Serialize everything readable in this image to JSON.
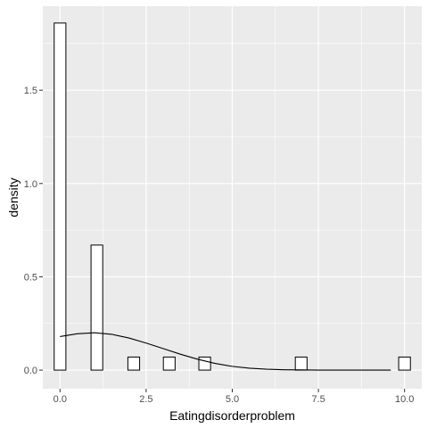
{
  "chart_data": {
    "type": "histogram",
    "title": "",
    "xlabel": "Eatingdisorderproblem",
    "ylabel": "density",
    "xlim": [
      -0.5,
      10.5
    ],
    "ylim": [
      -0.1,
      1.95
    ],
    "x_ticks": [
      0.0,
      2.5,
      5.0,
      7.5,
      10.0
    ],
    "x_tick_labels": [
      "0.0",
      "2.5",
      "5.0",
      "7.5",
      "10.0"
    ],
    "y_ticks": [
      0.0,
      0.5,
      1.0,
      1.5
    ],
    "y_tick_labels": [
      "0.0",
      "0.5",
      "1.0",
      "1.5"
    ],
    "grid": true,
    "panel_background": "#ebebeb",
    "grid_color": "#ffffff",
    "bar_fill": "#ffffff",
    "bar_stroke": "#000000",
    "bars": [
      {
        "x0": -0.17,
        "x1": 0.17,
        "value": 1.86
      },
      {
        "x0": 0.9,
        "x1": 1.24,
        "value": 0.67
      },
      {
        "x0": 1.97,
        "x1": 2.31,
        "value": 0.07
      },
      {
        "x0": 3.0,
        "x1": 3.34,
        "value": 0.07
      },
      {
        "x0": 4.03,
        "x1": 4.37,
        "value": 0.07
      },
      {
        "x0": 6.83,
        "x1": 7.17,
        "value": 0.07
      },
      {
        "x0": 9.83,
        "x1": 10.17,
        "value": 0.07
      }
    ],
    "density_curve": {
      "x": [
        0.0,
        0.5,
        1.0,
        1.5,
        2.0,
        2.5,
        3.0,
        3.5,
        4.0,
        4.5,
        5.0,
        5.5,
        6.0,
        6.5,
        7.0,
        7.5,
        8.0,
        8.5,
        9.0,
        9.6
      ],
      "y": [
        0.18,
        0.195,
        0.2,
        0.192,
        0.172,
        0.145,
        0.115,
        0.085,
        0.058,
        0.036,
        0.02,
        0.01,
        0.005,
        0.002,
        0.001,
        0.0,
        0.0,
        0.0,
        0.0,
        0.0
      ]
    }
  }
}
